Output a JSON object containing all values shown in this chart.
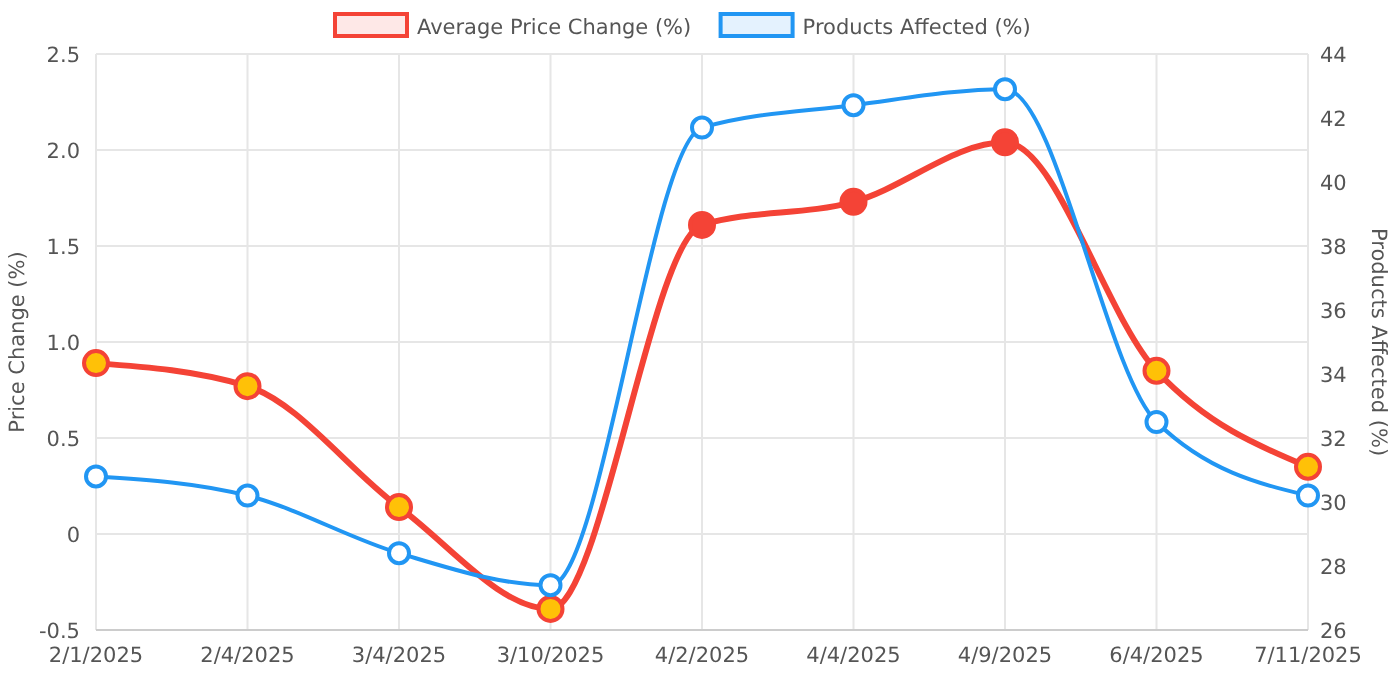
{
  "chart_data": {
    "type": "line",
    "categories": [
      "2/1/2025",
      "2/4/2025",
      "3/4/2025",
      "3/10/2025",
      "4/2/2025",
      "4/4/2025",
      "4/9/2025",
      "6/4/2025",
      "7/11/2025"
    ],
    "series": [
      {
        "name": "Average Price Change (%)",
        "color": "#f44336",
        "colors": [
          "#ffc107",
          "#ffc107",
          "#ffc107",
          "#ffc107",
          "#f44336",
          "#f44336",
          "#f44336",
          "#ffc107",
          "#ffc107"
        ],
        "values": [
          0.89,
          0.77,
          0.14,
          -0.39,
          1.61,
          1.73,
          2.04,
          0.85,
          0.35
        ]
      },
      {
        "name": "Products Affected (%)",
        "color": "#2196f3",
        "colors": [
          "#ffffff",
          "#ffffff",
          "#ffffff",
          "#ffffff",
          "#ffffff",
          "#ffffff",
          "#ffffff",
          "#ffffff",
          "#ffffff"
        ],
        "axis": "y2",
        "values": [
          30.8,
          30.2,
          28.4,
          27.4,
          41.7,
          42.4,
          42.9,
          32.5,
          30.2
        ]
      }
    ],
    "ylabel": "Price Change (%)",
    "y2label": "Products Affected (%)",
    "ylim": [
      -0.5,
      2.5
    ],
    "yticks": [
      -0.5,
      0,
      {
        "value": 0.5,
        "label": "0.5"
      },
      {
        "value": 1,
        "label": "1.0"
      },
      {
        "value": 1.5,
        "label": "1.5"
      },
      {
        "value": 2,
        "label": "2.0"
      },
      {
        "value": 2.5,
        "label": "2.5"
      }
    ],
    "y2lim": [
      26,
      44
    ],
    "y2ticks": [
      26,
      28,
      30,
      32,
      34,
      36,
      38,
      40,
      42,
      44
    ],
    "grid": true,
    "legend": "top",
    "marker": "circle",
    "line_style": "solid"
  }
}
